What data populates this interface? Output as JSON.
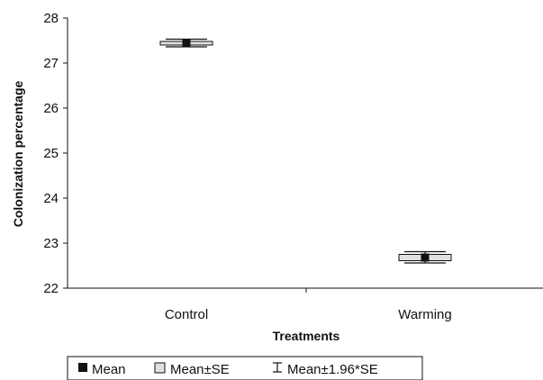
{
  "chart_data": {
    "type": "box",
    "xlabel": "Treatments",
    "ylabel": "Colonization percentage",
    "ylim": [
      22,
      28
    ],
    "yticks": [
      22,
      23,
      24,
      25,
      26,
      27,
      28
    ],
    "categories": [
      "Control",
      "Warming"
    ],
    "series": [
      {
        "name": "Mean",
        "values": [
          27.44,
          22.68
        ]
      },
      {
        "name": "Mean±SE",
        "values": [
          [
            27.4,
            27.48
          ],
          [
            22.61,
            22.75
          ]
        ]
      },
      {
        "name": "Mean±1.96*SE",
        "values": [
          [
            27.36,
            27.53
          ],
          [
            22.56,
            22.81
          ]
        ]
      }
    ],
    "legend": {
      "position": "bottom",
      "items": [
        {
          "label": "Mean",
          "symbol": "filled-square-icon"
        },
        {
          "label": "Mean±SE",
          "symbol": "open-square-icon"
        },
        {
          "label": "Mean±1.96*SE",
          "symbol": "whisker-icon"
        }
      ]
    },
    "colors": {
      "box_fill": "#e0e0e0",
      "mean_marker": "#111111",
      "axis": "#111111"
    }
  }
}
